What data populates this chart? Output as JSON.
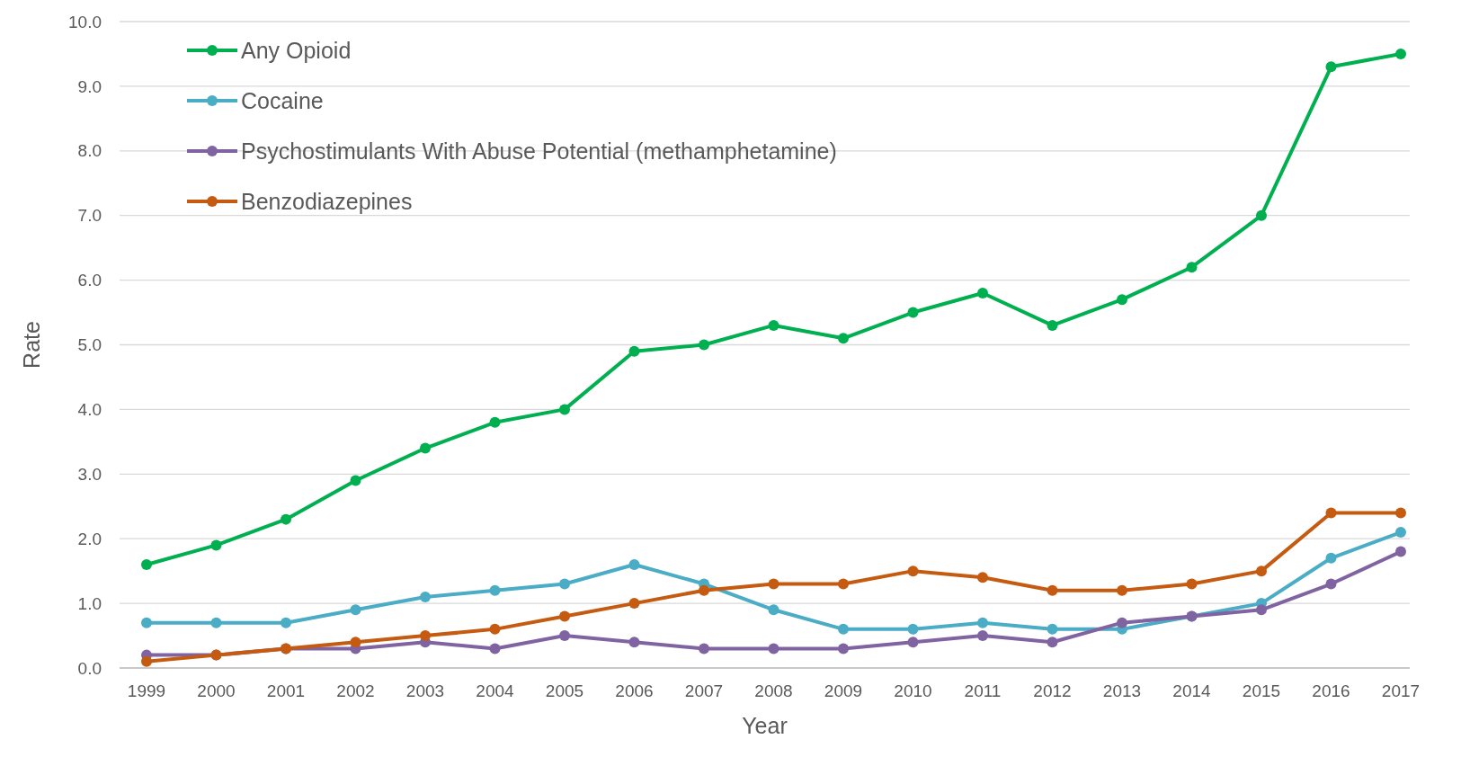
{
  "chart_data": {
    "type": "line",
    "xlabel": "Year",
    "ylabel": "Rate",
    "categories": [
      "1999",
      "2000",
      "2001",
      "2002",
      "2003",
      "2004",
      "2005",
      "2006",
      "2007",
      "2008",
      "2009",
      "2010",
      "2011",
      "2012",
      "2013",
      "2014",
      "2015",
      "2016",
      "2017"
    ],
    "series": [
      {
        "name": "Any Opioid",
        "color": "#00b050",
        "values": [
          1.6,
          1.9,
          2.3,
          2.9,
          3.4,
          3.8,
          4.0,
          4.9,
          5.0,
          5.3,
          5.1,
          5.5,
          5.8,
          5.3,
          5.7,
          6.2,
          7.0,
          9.3,
          9.5
        ]
      },
      {
        "name": "Cocaine",
        "color": "#4bacc6",
        "values": [
          0.7,
          0.7,
          0.7,
          0.9,
          1.1,
          1.2,
          1.3,
          1.6,
          1.3,
          0.9,
          0.6,
          0.6,
          0.7,
          0.6,
          0.6,
          0.8,
          1.0,
          1.7,
          2.1
        ]
      },
      {
        "name": "Psychostimulants With Abuse Potential (methamphetamine)",
        "color": "#8064a2",
        "values": [
          0.2,
          0.2,
          0.3,
          0.3,
          0.4,
          0.3,
          0.5,
          0.4,
          0.3,
          0.3,
          0.3,
          0.4,
          0.5,
          0.4,
          0.7,
          0.8,
          0.9,
          1.3,
          1.8
        ]
      },
      {
        "name": "Benzodiazepines",
        "color": "#c55a11",
        "values": [
          0.1,
          0.2,
          0.3,
          0.4,
          0.5,
          0.6,
          0.8,
          1.0,
          1.2,
          1.3,
          1.3,
          1.5,
          1.4,
          1.2,
          1.2,
          1.3,
          1.5,
          2.4,
          2.4
        ]
      }
    ],
    "ylim": [
      0,
      10
    ],
    "yticks": [
      {
        "value": 0,
        "label": "0.0"
      },
      {
        "value": 1,
        "label": "1.0"
      },
      {
        "value": 2,
        "label": "2.0"
      },
      {
        "value": 3,
        "label": "3.0"
      },
      {
        "value": 4,
        "label": "4.0"
      },
      {
        "value": 5,
        "label": "5.0"
      },
      {
        "value": 6,
        "label": "6.0"
      },
      {
        "value": 7,
        "label": "7.0"
      },
      {
        "value": 8,
        "label": "8.0"
      },
      {
        "value": 9,
        "label": "9.0"
      },
      {
        "value": 10,
        "label": "10.0"
      }
    ],
    "grid": "y",
    "legend": "top left",
    "marker": "circle",
    "line_style": "solid"
  }
}
